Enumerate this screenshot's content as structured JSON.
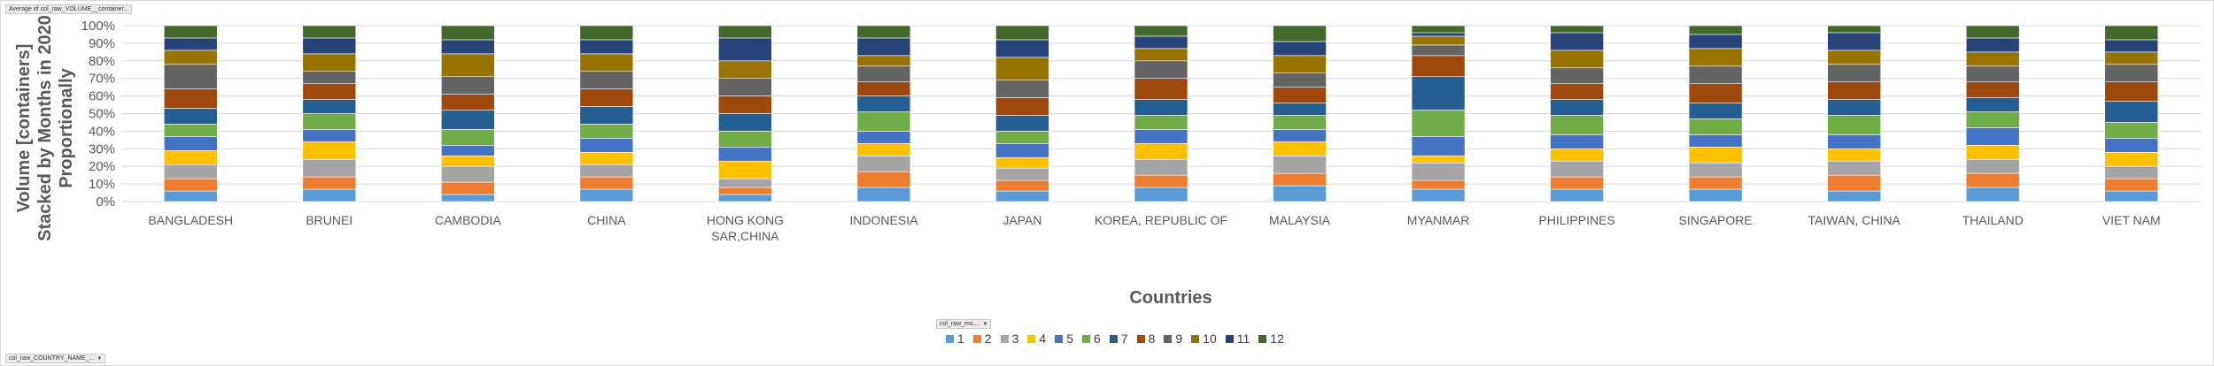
{
  "field_buttons": {
    "values_field": "Average of col_raw_VOLUME__container...",
    "legend_field": "col_raw_mo....",
    "axis_field": "col_raw_COUNTRY_NAME_..."
  },
  "chart_data": {
    "type": "bar",
    "stacked": "percent",
    "ylabel_line1": "Volume [containers]",
    "ylabel_line2": "Stacked by Months in 2020",
    "ylabel_line3": "Proportionally",
    "xlabel": "Countries",
    "ylim": [
      0,
      100
    ],
    "yticks": [
      "0%",
      "10%",
      "20%",
      "30%",
      "40%",
      "50%",
      "60%",
      "70%",
      "80%",
      "90%",
      "100%"
    ],
    "grid": true,
    "legend_position": "bottom",
    "categories": [
      [
        "BANGLADESH"
      ],
      [
        "BRUNEI"
      ],
      [
        "CAMBODIA"
      ],
      [
        "CHINA"
      ],
      [
        "HONG KONG",
        "SAR,CHINA"
      ],
      [
        "INDONESIA"
      ],
      [
        "JAPAN"
      ],
      [
        "KOREA, REPUBLIC OF"
      ],
      [
        "MALAYSIA"
      ],
      [
        "MYANMAR"
      ],
      [
        "PHILIPPINES"
      ],
      [
        "SINGAPORE"
      ],
      [
        "TAIWAN, CHINA"
      ],
      [
        "THAILAND"
      ],
      [
        "VIET NAM"
      ]
    ],
    "colors": [
      "#5b9bd5",
      "#ed7d31",
      "#a5a5a5",
      "#ffc000",
      "#4472c4",
      "#70ad47",
      "#255e91",
      "#9e480e",
      "#636363",
      "#997300",
      "#264478",
      "#43682b"
    ],
    "series": [
      {
        "name": "1",
        "values": [
          6,
          7,
          4,
          7,
          4,
          8,
          6,
          8,
          9,
          7,
          7,
          7,
          6,
          8,
          6
        ]
      },
      {
        "name": "2",
        "values": [
          7,
          7,
          7,
          7,
          4,
          9,
          6,
          7,
          7,
          5,
          7,
          7,
          9,
          8,
          7
        ]
      },
      {
        "name": "3",
        "values": [
          8,
          10,
          9,
          7,
          5,
          9,
          7,
          9,
          10,
          10,
          9,
          8,
          8,
          8,
          7
        ]
      },
      {
        "name": "4",
        "values": [
          8,
          10,
          6,
          7,
          10,
          7,
          6,
          9,
          8,
          4,
          7,
          9,
          7,
          8,
          8
        ]
      },
      {
        "name": "5",
        "values": [
          8,
          7,
          6,
          8,
          8,
          7,
          8,
          8,
          7,
          11,
          8,
          7,
          8,
          10,
          8
        ]
      },
      {
        "name": "6",
        "values": [
          7,
          9,
          9,
          8,
          9,
          11,
          7,
          8,
          8,
          15,
          11,
          9,
          11,
          9,
          9
        ]
      },
      {
        "name": "7",
        "values": [
          9,
          8,
          11,
          10,
          10,
          9,
          9,
          9,
          7,
          19,
          9,
          9,
          9,
          8,
          12
        ]
      },
      {
        "name": "8",
        "values": [
          11,
          9,
          9,
          10,
          10,
          8,
          10,
          12,
          9,
          12,
          9,
          11,
          10,
          9,
          11
        ]
      },
      {
        "name": "9",
        "values": [
          14,
          7,
          10,
          10,
          10,
          9,
          10,
          10,
          8,
          6,
          9,
          10,
          10,
          9,
          10
        ]
      },
      {
        "name": "10",
        "values": [
          8,
          10,
          13,
          10,
          10,
          6,
          13,
          7,
          10,
          5,
          10,
          10,
          8,
          8,
          7
        ]
      },
      {
        "name": "11",
        "values": [
          7,
          9,
          8,
          8,
          13,
          10,
          10,
          7,
          8,
          2,
          10,
          8,
          10,
          8,
          7
        ]
      },
      {
        "name": "12",
        "values": [
          7,
          7,
          8,
          8,
          7,
          7,
          8,
          6,
          9,
          4,
          4,
          5,
          4,
          7,
          8
        ]
      }
    ]
  }
}
